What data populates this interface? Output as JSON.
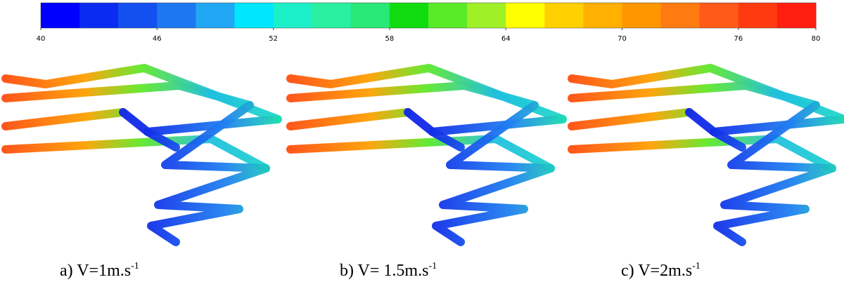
{
  "colorbar": {
    "range": [
      40,
      80
    ],
    "ticks": [
      40,
      46,
      52,
      58,
      64,
      70,
      76,
      80
    ],
    "colors": [
      "#0000ff",
      "#0a2cf2",
      "#1450f0",
      "#1c78f0",
      "#20a8f4",
      "#00e6ff",
      "#1cf0c8",
      "#28f0a0",
      "#28e878",
      "#10dc10",
      "#5aeb28",
      "#a0f028",
      "#ffff00",
      "#ffd000",
      "#ffb000",
      "#ff9600",
      "#ff7a10",
      "#ff5a18",
      "#ff3a10",
      "#ff1e10"
    ]
  },
  "panels": [
    {
      "caption": "a) V=1m.s",
      "sup": "-1"
    },
    {
      "caption": "b) V= 1.5m.s",
      "sup": "-1"
    },
    {
      "caption": "c) V=2m.s",
      "sup": "-1"
    }
  ]
}
